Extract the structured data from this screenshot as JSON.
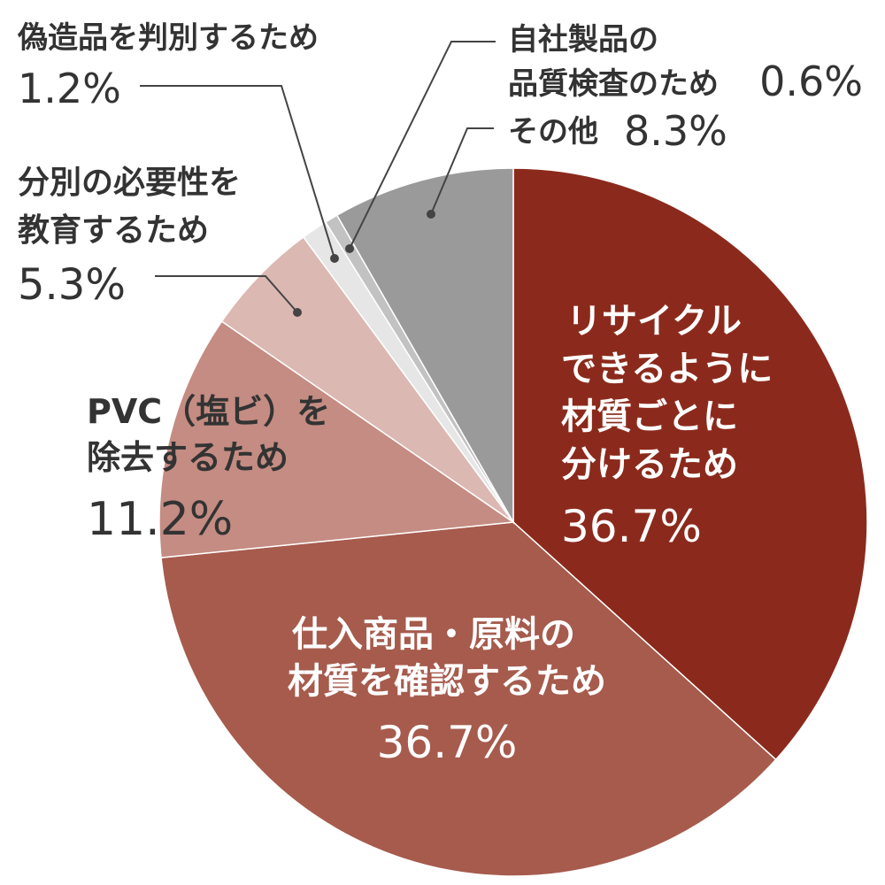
{
  "chart_data": {
    "type": "pie",
    "start": "12 o'clock",
    "direction": "clockwise",
    "slices": [
      {
        "label_lines": [
          "リサイクル",
          "できるように",
          "材質ごとに",
          "分けるため"
        ],
        "value": 36.7,
        "value_text": "36.7%",
        "color": "#8b2a1c"
      },
      {
        "label_lines": [
          "仕入商品・原料の",
          "材質を確認するため"
        ],
        "value": 36.7,
        "value_text": "36.7%",
        "color": "#a65b4d"
      },
      {
        "label_lines": [
          "PVC（塩ビ）を",
          "除去するため"
        ],
        "value": 11.2,
        "value_text": "11.2%",
        "color": "#c48c82"
      },
      {
        "label_lines": [
          "分別の必要性を",
          "教育するため"
        ],
        "value": 5.3,
        "value_text": "5.3%",
        "color": "#dcb8b2"
      },
      {
        "label_lines": [
          "偽造品を判別するため"
        ],
        "value": 1.2,
        "value_text": "1.2%",
        "color": "#e6e6e6"
      },
      {
        "label_lines": [
          "自社製品の",
          "品質検査のため"
        ],
        "value": 0.6,
        "value_text": "0.6%",
        "color": "#c2c2c2"
      },
      {
        "label_lines": [
          "その他"
        ],
        "value": 8.3,
        "value_text": "8.3%",
        "color": "#9a9a9a"
      }
    ],
    "label_color_inside": "#ffffff",
    "label_color_outside": "#333333",
    "leader_line_color": "#444444"
  }
}
